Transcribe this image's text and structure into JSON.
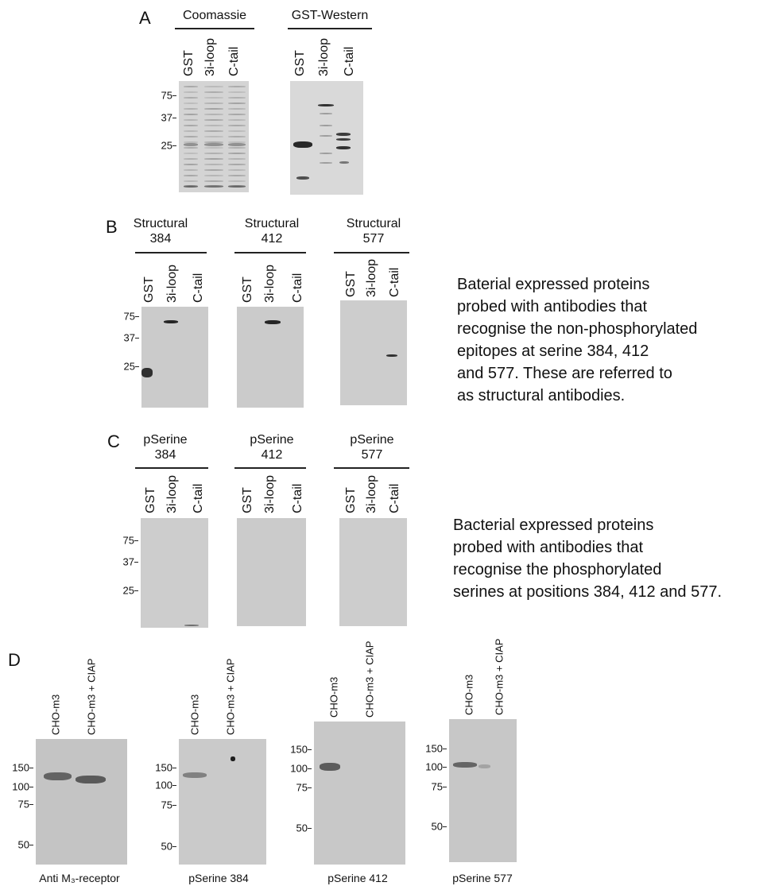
{
  "panel_a": {
    "label": "A",
    "blots": [
      {
        "title": [
          "Coomassie"
        ],
        "lanes": [
          "GST",
          "3i-loop",
          "C-tail"
        ],
        "markers": [
          "75",
          "37",
          "25"
        ]
      },
      {
        "title": [
          "GST-Western"
        ],
        "lanes": [
          "GST",
          "3i-loop",
          "C-tail"
        ]
      }
    ]
  },
  "panel_b": {
    "label": "B",
    "blots": [
      {
        "title": [
          "Structural",
          "384"
        ],
        "lanes": [
          "GST",
          "3i-loop",
          "C-tail"
        ],
        "markers": [
          "75",
          "37",
          "25"
        ]
      },
      {
        "title": [
          "Structural",
          "412"
        ],
        "lanes": [
          "GST",
          "3i-loop",
          "C-tail"
        ]
      },
      {
        "title": [
          "Structural",
          "577"
        ],
        "lanes": [
          "GST",
          "3i-loop",
          "C-tail"
        ]
      }
    ],
    "description": [
      "Baterial expressed proteins",
      "probed with antibodies that",
      "recognise the non-phosphorylated",
      "epitopes at serine 384, 412",
      "and 577. These are referred to",
      "as structural antibodies."
    ]
  },
  "panel_c": {
    "label": "C",
    "blots": [
      {
        "title": [
          "pSerine",
          "384"
        ],
        "lanes": [
          "GST",
          "3i-loop",
          "C-tail"
        ],
        "markers": [
          "75",
          "37",
          "25"
        ]
      },
      {
        "title": [
          "pSerine",
          "412"
        ],
        "lanes": [
          "GST",
          "3i-loop",
          "C-tail"
        ]
      },
      {
        "title": [
          "pSerine",
          "577"
        ],
        "lanes": [
          "GST",
          "3i-loop",
          "C-tail"
        ]
      }
    ],
    "description": [
      "Bacterial expressed proteins",
      "probed with antibodies that",
      "recognise the phosphorylated",
      "serines at positions 384, 412 and 577."
    ]
  },
  "panel_d": {
    "label": "D",
    "blots": [
      {
        "lanes": [
          "CHO-m3",
          "CHO-m3 + CIAP"
        ],
        "markers": [
          "150",
          "100",
          "75",
          "50"
        ],
        "caption": "Anti M₃-receptor"
      },
      {
        "lanes": [
          "CHO-m3",
          "CHO-m3 + CIAP"
        ],
        "markers": [
          "150",
          "100",
          "75",
          "50"
        ],
        "caption": "pSerine 384"
      },
      {
        "lanes": [
          "CHO-m3",
          "CHO-m3 + CIAP"
        ],
        "markers": [
          "150",
          "100",
          "75",
          "50"
        ],
        "caption": "pSerine 412"
      },
      {
        "lanes": [
          "CHO-m3",
          "CHO-m3 + CIAP"
        ],
        "markers": [
          "150",
          "100",
          "75",
          "50"
        ],
        "caption": "pSerine 577"
      }
    ]
  }
}
